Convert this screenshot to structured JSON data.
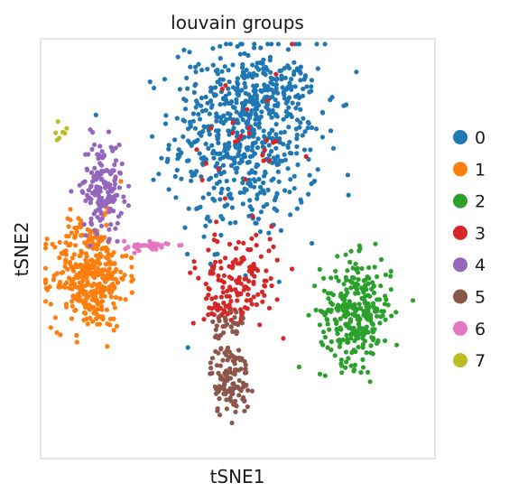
{
  "chart_data": {
    "type": "scatter",
    "title": "louvain groups",
    "xlabel": "tSNE1",
    "ylabel": "tSNE2",
    "xlim": [
      -40,
      40
    ],
    "ylim": [
      -40,
      40
    ],
    "grid": false,
    "legend_position": "right",
    "series": [
      {
        "name": "0",
        "color": "#1f77b4",
        "n": 700,
        "regions": [
          {
            "cx": 1.5,
            "cy": 21,
            "sx": 7.5,
            "sy": 9.5,
            "w": 0.8
          },
          {
            "cx": 4,
            "cy": 28,
            "sx": 6,
            "sy": 4,
            "w": 0.2
          }
        ]
      },
      {
        "name": "1",
        "color": "#ff7f0e",
        "n": 380,
        "regions": [
          {
            "cx": -30,
            "cy": -5,
            "sx": 3.8,
            "sy": 5.2,
            "w": 1
          }
        ]
      },
      {
        "name": "2",
        "color": "#2ca02c",
        "n": 300,
        "regions": [
          {
            "cx": 24,
            "cy": -12,
            "sx": 3.6,
            "sy": 5,
            "w": 1
          }
        ]
      },
      {
        "name": "3",
        "color": "#d62728",
        "n": 200,
        "regions": [
          {
            "cx": 0.5,
            "cy": -5,
            "sx": 4.2,
            "sy": 4.2,
            "w": 0.6
          },
          {
            "cx": -2.5,
            "cy": -10.5,
            "sx": 2.2,
            "sy": 2,
            "w": 0.25
          },
          {
            "cx": 2,
            "cy": 17,
            "sx": 6,
            "sy": 9,
            "w": 0.15
          }
        ]
      },
      {
        "name": "4",
        "color": "#9467bd",
        "n": 160,
        "regions": [
          {
            "cx": -27.5,
            "cy": 12,
            "sx": 2.1,
            "sy": 4.3,
            "w": 1
          }
        ]
      },
      {
        "name": "5",
        "color": "#8c564b",
        "n": 150,
        "regions": [
          {
            "cx": -1.5,
            "cy": -25,
            "sx": 2,
            "sy": 3.5,
            "w": 0.8
          },
          {
            "cx": -1.8,
            "cy": -15,
            "sx": 1.6,
            "sy": 2.2,
            "w": 0.2
          }
        ]
      },
      {
        "name": "6",
        "color": "#e377c2",
        "n": 35,
        "regions": [
          {
            "cx": -18,
            "cy": 0.5,
            "sx": 2.5,
            "sy": 0.5,
            "w": 1
          }
        ]
      },
      {
        "name": "7",
        "color": "#bcbd22",
        "n": 7,
        "regions": [
          {
            "cx": -35.8,
            "cy": 21.5,
            "sx": 0.6,
            "sy": 1,
            "w": 1
          }
        ]
      }
    ]
  }
}
